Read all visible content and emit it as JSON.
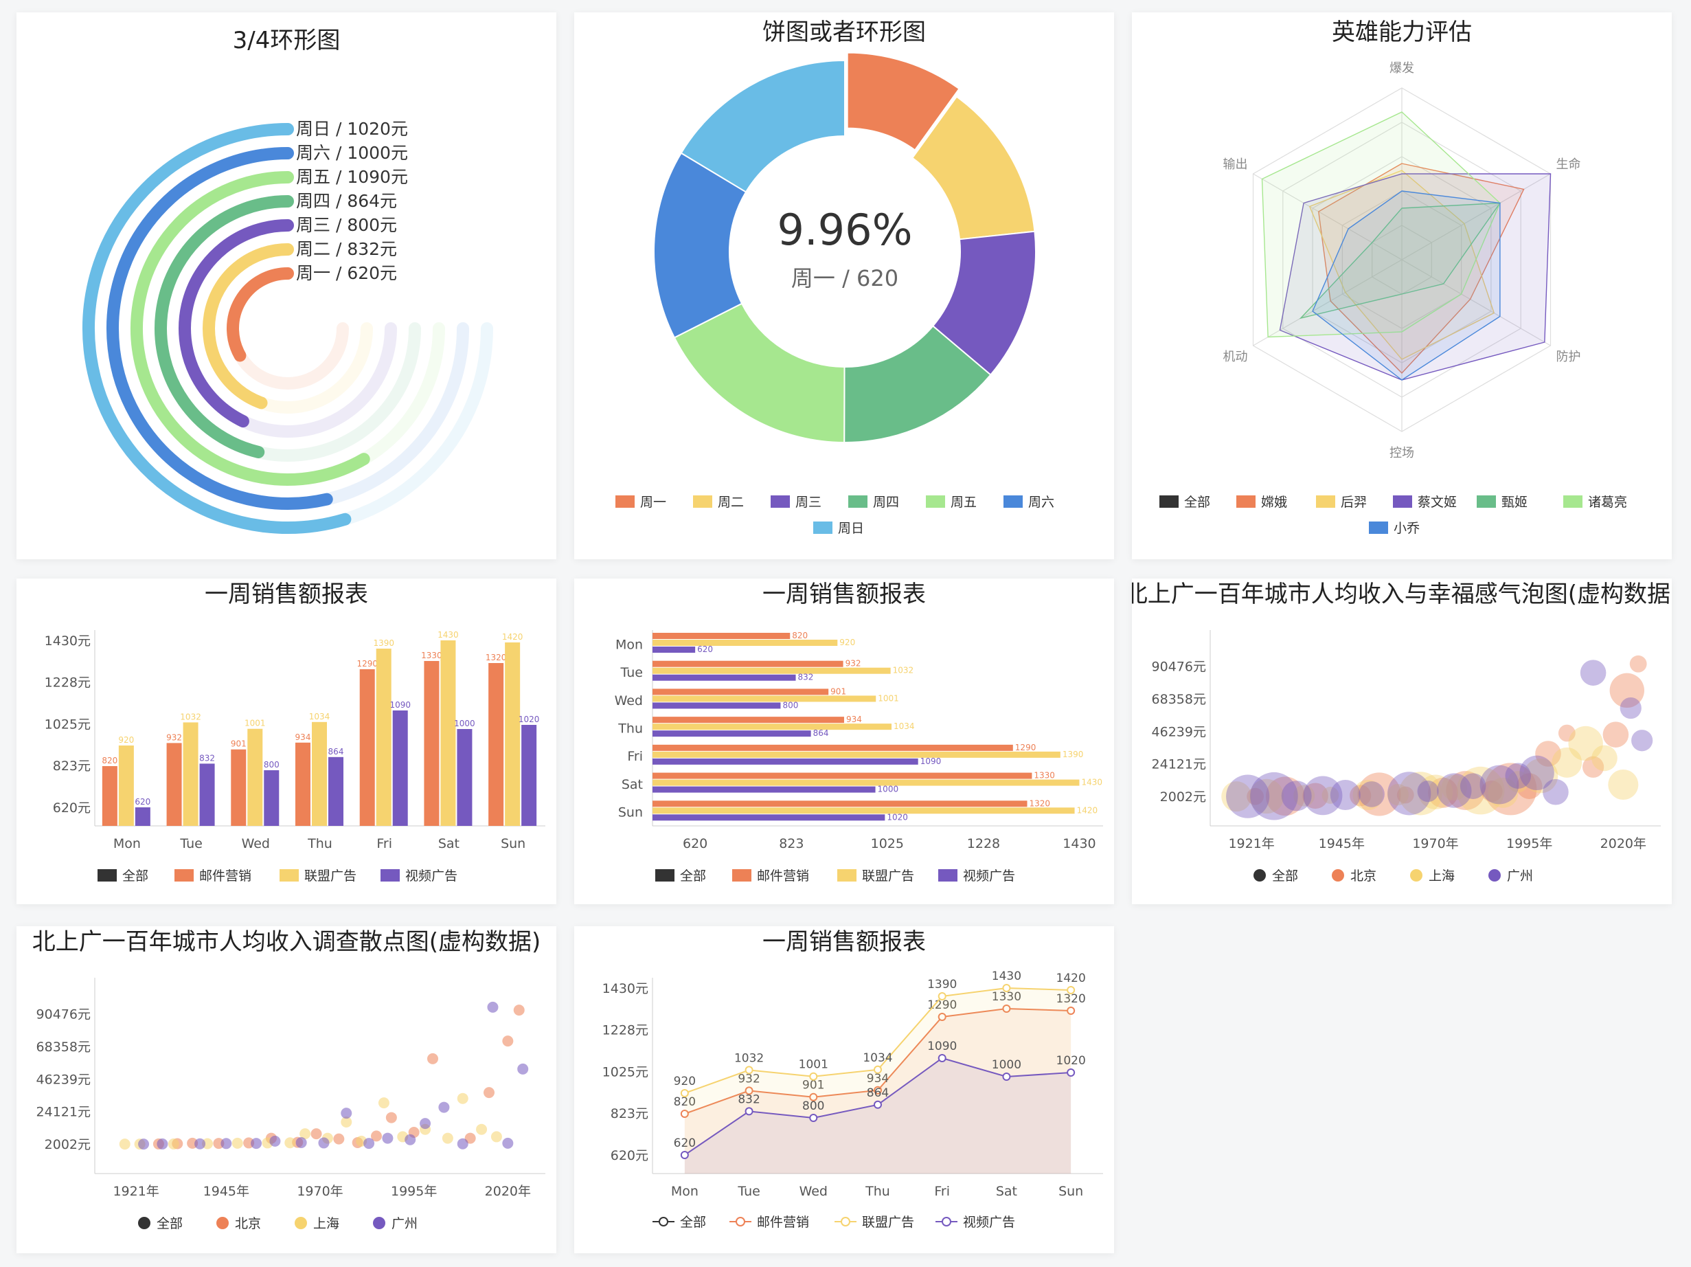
{
  "palette": {
    "mon": "#ED8156",
    "tue": "#F6D36F",
    "wed": "#7559BF",
    "thu": "#69BD89",
    "fri": "#A6E78F",
    "sat": "#4A88DA",
    "sun": "#69BCE6",
    "all": "#333333"
  },
  "chart_data": [
    {
      "type": "pie",
      "title": "3/4环形图",
      "rings": [
        {
          "label": "周日 / 1020元",
          "value": 1020
        },
        {
          "label": "周六 / 1000元",
          "value": 1000
        },
        {
          "label": "周五 / 1090元",
          "value": 1090
        },
        {
          "label": "周四 / 864元",
          "value": 864
        },
        {
          "label": "周三 / 800元",
          "value": 800
        },
        {
          "label": "周二 / 832元",
          "value": 832
        },
        {
          "label": "周一 / 620元",
          "value": 620
        }
      ]
    },
    {
      "type": "pie",
      "title": "饼图或者环形图",
      "center_value": "9.96%",
      "center_label": "周一 / 620",
      "categories": [
        "周一",
        "周二",
        "周三",
        "周四",
        "周五",
        "周六",
        "周日"
      ],
      "values": [
        620,
        832,
        800,
        864,
        1090,
        1000,
        1020
      ]
    },
    {
      "type": "radar",
      "title": "英雄能力评估",
      "indicators": [
        "爆发",
        "生命",
        "防护",
        "控场",
        "机动",
        "输出"
      ],
      "legend": [
        "全部",
        "嫦娥",
        "后羿",
        "蔡文姬",
        "甄姬",
        "诸葛亮",
        "小乔"
      ],
      "series": [
        {
          "name": "嫦娥",
          "values": [
            0.56,
            0.82,
            0.46,
            0.66,
            0.48,
            0.56
          ]
        },
        {
          "name": "后羿",
          "values": [
            0.52,
            0.42,
            0.62,
            0.58,
            0.38,
            0.62
          ]
        },
        {
          "name": "蔡文姬",
          "values": [
            0.5,
            1.0,
            0.96,
            0.7,
            0.82,
            0.66
          ]
        },
        {
          "name": "甄姬",
          "values": [
            0.3,
            0.66,
            0.28,
            0.2,
            0.68,
            0.2
          ]
        },
        {
          "name": "诸葛亮",
          "values": [
            0.86,
            0.66,
            0.4,
            0.42,
            0.9,
            0.94
          ]
        },
        {
          "name": "小乔",
          "values": [
            0.4,
            0.66,
            0.66,
            0.7,
            0.6,
            0.36
          ]
        }
      ]
    },
    {
      "type": "bar",
      "title": "一周销售额报表",
      "categories": [
        "Mon",
        "Tue",
        "Wed",
        "Thu",
        "Fri",
        "Sat",
        "Sun"
      ],
      "ytick_labels": [
        "620元",
        "823元",
        "1025元",
        "1228元",
        "1430元"
      ],
      "ylim": [
        530,
        1480
      ],
      "legend": [
        "全部",
        "邮件营销",
        "联盟广告",
        "视频广告"
      ],
      "series": [
        {
          "name": "邮件营销",
          "values": [
            820,
            932,
            901,
            934,
            1290,
            1330,
            1320
          ]
        },
        {
          "name": "联盟广告",
          "values": [
            920,
            1032,
            1001,
            1034,
            1390,
            1430,
            1420
          ]
        },
        {
          "name": "视频广告",
          "values": [
            620,
            832,
            800,
            864,
            1090,
            1000,
            1020
          ]
        }
      ]
    },
    {
      "type": "bar",
      "orientation": "horizontal",
      "title": "一周销售额报表",
      "categories": [
        "Mon",
        "Tue",
        "Wed",
        "Thu",
        "Fri",
        "Sat",
        "Sun"
      ],
      "xtick_labels": [
        "620",
        "823",
        "1025",
        "1228",
        "1430"
      ],
      "xlim": [
        530,
        1480
      ],
      "legend": [
        "全部",
        "邮件营销",
        "联盟广告",
        "视频广告"
      ],
      "series": [
        {
          "name": "邮件营销",
          "values": [
            820,
            932,
            901,
            934,
            1290,
            1330,
            1320
          ]
        },
        {
          "name": "联盟广告",
          "values": [
            920,
            1032,
            1001,
            1034,
            1390,
            1430,
            1420
          ]
        },
        {
          "name": "视频广告",
          "values": [
            620,
            832,
            800,
            864,
            1090,
            1000,
            1020
          ]
        }
      ]
    },
    {
      "type": "scatter",
      "variant": "bubble",
      "title": "北上广一百年城市人均收入与幸福感气泡图(虚构数据)",
      "xtick_labels": [
        "1921年",
        "1945年",
        "1970年",
        "1995年",
        "2020年"
      ],
      "xlim": [
        1910,
        2030
      ],
      "ytick_labels": [
        "2002元",
        "24121元",
        "46239元",
        "68358元",
        "90476元"
      ],
      "ylim": [
        -18000,
        115000
      ],
      "legend": [
        "全部",
        "北京",
        "上海",
        "广州"
      ],
      "series": [
        {
          "name": "北京",
          "points": [
            [
              1922,
              2000,
              2
            ],
            [
              1930,
              2200,
              7
            ],
            [
              1938,
              2400,
              4
            ],
            [
              1950,
              2600,
              3
            ],
            [
              1955,
              3500,
              8
            ],
            [
              1962,
              3000,
              2
            ],
            [
              1972,
              4500,
              5
            ],
            [
              1978,
              6000,
              7
            ],
            [
              1985,
              5500,
              3
            ],
            [
              1990,
              7000,
              10
            ],
            [
              1995,
              9000,
              4
            ],
            [
              2000,
              31000,
              4
            ],
            [
              2005,
              45000,
              2
            ],
            [
              2012,
              22000,
              3
            ],
            [
              2018,
              44000,
              4
            ],
            [
              2021,
              74000,
              6
            ],
            [
              2024,
              92000,
              2
            ]
          ]
        },
        {
          "name": "上海",
          "points": [
            [
              1917,
              2000,
              5
            ],
            [
              1925,
              2100,
              6
            ],
            [
              1935,
              2500,
              3
            ],
            [
              1942,
              2800,
              2
            ],
            [
              1952,
              3000,
              5
            ],
            [
              1960,
              3200,
              3
            ],
            [
              1966,
              4000,
              8
            ],
            [
              1970,
              5000,
              6
            ],
            [
              1975,
              8000,
              4
            ],
            [
              1982,
              6000,
              9
            ],
            [
              1988,
              4500,
              5
            ],
            [
              1992,
              12000,
              3
            ],
            [
              1998,
              16000,
              6
            ],
            [
              2005,
              25000,
              5
            ],
            [
              2010,
              38000,
              6
            ],
            [
              2015,
              28000,
              4
            ],
            [
              2020,
              10000,
              5
            ]
          ]
        },
        {
          "name": "广州",
          "points": [
            [
              1920,
              2000,
              8
            ],
            [
              1927,
              2200,
              9
            ],
            [
              1933,
              2400,
              5
            ],
            [
              1940,
              2600,
              7
            ],
            [
              1946,
              3000,
              5
            ],
            [
              1953,
              3500,
              4
            ],
            [
              1963,
              4000,
              8
            ],
            [
              1968,
              5500,
              3
            ],
            [
              1975,
              6000,
              6
            ],
            [
              1980,
              9000,
              4
            ],
            [
              1987,
              10000,
              7
            ],
            [
              1992,
              16000,
              4
            ],
            [
              1997,
              18000,
              6
            ],
            [
              2002,
              5000,
              4
            ],
            [
              2012,
              86000,
              4
            ],
            [
              2022,
              62000,
              3
            ],
            [
              2025,
              40000,
              3
            ]
          ]
        }
      ]
    },
    {
      "type": "scatter",
      "title": "北上广一百年城市人均收入调查散点图(虚构数据)",
      "xtick_labels": [
        "1921年",
        "1945年",
        "1970年",
        "1995年",
        "2020年"
      ],
      "xlim": [
        1910,
        2030
      ],
      "ytick_labels": [
        "2002元",
        "24121元",
        "46239元",
        "68358元",
        "90476元"
      ],
      "ylim": [
        -18000,
        115000
      ],
      "legend": [
        "全部",
        "北京",
        "上海",
        "广州"
      ],
      "series": [
        {
          "name": "北京",
          "points": [
            [
              1927,
              2100
            ],
            [
              1932,
              2300
            ],
            [
              1936,
              2600
            ],
            [
              1943,
              2500
            ],
            [
              1951,
              2800
            ],
            [
              1957,
              6000
            ],
            [
              1964,
              3200
            ],
            [
              1969,
              9000
            ],
            [
              1975,
              5500
            ],
            [
              1980,
              3000
            ],
            [
              1985,
              7500
            ],
            [
              1989,
              20000
            ],
            [
              1995,
              10000
            ],
            [
              2000,
              60000
            ],
            [
              2010,
              6000
            ],
            [
              2015,
              37000
            ],
            [
              2020,
              72000
            ],
            [
              2023,
              93000
            ]
          ]
        },
        {
          "name": "上海",
          "points": [
            [
              1918,
              2000
            ],
            [
              1922,
              2000
            ],
            [
              1931,
              2100
            ],
            [
              1940,
              2300
            ],
            [
              1948,
              2600
            ],
            [
              1956,
              2800
            ],
            [
              1962,
              2900
            ],
            [
              1966,
              9000
            ],
            [
              1972,
              6000
            ],
            [
              1977,
              17000
            ],
            [
              1981,
              4000
            ],
            [
              1987,
              30000
            ],
            [
              1992,
              7000
            ],
            [
              1998,
              12000
            ],
            [
              2004,
              6000
            ],
            [
              2008,
              33000
            ],
            [
              2013,
              12000
            ],
            [
              2017,
              7000
            ]
          ]
        },
        {
          "name": "广州",
          "points": [
            [
              1923,
              2000
            ],
            [
              1928,
              2100
            ],
            [
              1938,
              2200
            ],
            [
              1945,
              2400
            ],
            [
              1953,
              2500
            ],
            [
              1958,
              4000
            ],
            [
              1965,
              3000
            ],
            [
              1971,
              2800
            ],
            [
              1977,
              23000
            ],
            [
              1983,
              2500
            ],
            [
              1988,
              6000
            ],
            [
              1994,
              5000
            ],
            [
              1998,
              16000
            ],
            [
              2003,
              27000
            ],
            [
              2008,
              2200
            ],
            [
              2016,
              95000
            ],
            [
              2020,
              2600
            ],
            [
              2024,
              53000
            ]
          ]
        }
      ]
    },
    {
      "type": "line",
      "title": "一周销售额报表",
      "categories": [
        "Mon",
        "Tue",
        "Wed",
        "Thu",
        "Fri",
        "Sat",
        "Sun"
      ],
      "ytick_labels": [
        "620元",
        "823元",
        "1025元",
        "1228元",
        "1430元"
      ],
      "ylim": [
        530,
        1480
      ],
      "legend": [
        "全部",
        "邮件营销",
        "联盟广告",
        "视频广告"
      ],
      "series": [
        {
          "name": "邮件营销",
          "values": [
            820,
            932,
            901,
            934,
            1290,
            1330,
            1320
          ]
        },
        {
          "name": "联盟广告",
          "values": [
            920,
            1032,
            1001,
            1034,
            1390,
            1430,
            1420
          ]
        },
        {
          "name": "视频广告",
          "values": [
            620,
            832,
            800,
            864,
            1090,
            1000,
            1020
          ]
        }
      ]
    }
  ]
}
